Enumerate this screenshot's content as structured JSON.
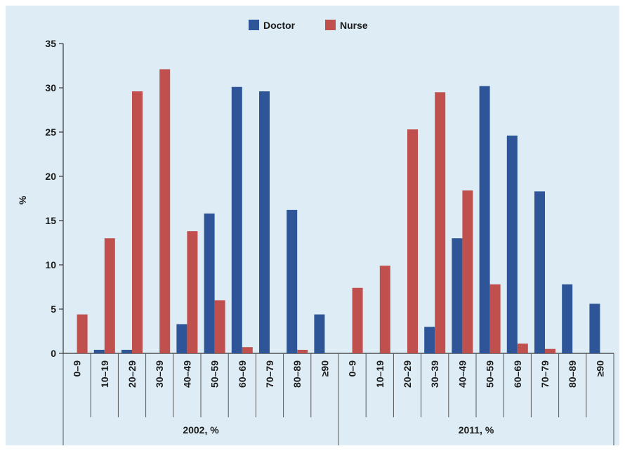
{
  "chart_data": {
    "type": "bar",
    "ylabel": "%",
    "ylim": [
      0,
      35
    ],
    "yticks": [
      0,
      5,
      10,
      15,
      20,
      25,
      30,
      35
    ],
    "legend_position": "top-center",
    "grid": false,
    "groups": [
      {
        "label": "2002, %",
        "categories": [
          "0–9",
          "10–19",
          "20–29",
          "30–39",
          "40–49",
          "50–59",
          "60–69",
          "70–79",
          "80–89",
          "≥90"
        ],
        "series": [
          {
            "name": "Doctor",
            "values": [
              0,
              0.4,
              0.4,
              0,
              3.3,
              15.8,
              30.1,
              29.6,
              16.2,
              4.4
            ]
          },
          {
            "name": "Nurse",
            "values": [
              4.4,
              13.0,
              29.6,
              32.1,
              13.8,
              6.0,
              0.7,
              0,
              0.4,
              0
            ]
          }
        ]
      },
      {
        "label": "2011, %",
        "categories": [
          "0–9",
          "10–19",
          "20–29",
          "30–39",
          "40–49",
          "50–59",
          "60–69",
          "70–79",
          "80–89",
          "≥90"
        ],
        "series": [
          {
            "name": "Doctor",
            "values": [
              0,
              0,
              0,
              3.0,
              13.0,
              30.2,
              24.6,
              18.3,
              7.8,
              5.6
            ]
          },
          {
            "name": "Nurse",
            "values": [
              7.4,
              9.9,
              25.3,
              29.5,
              18.4,
              7.8,
              1.1,
              0.5,
              0,
              0
            ]
          }
        ]
      }
    ],
    "colors": {
      "Doctor": "#2e5597",
      "Nurse": "#c0504d"
    }
  }
}
